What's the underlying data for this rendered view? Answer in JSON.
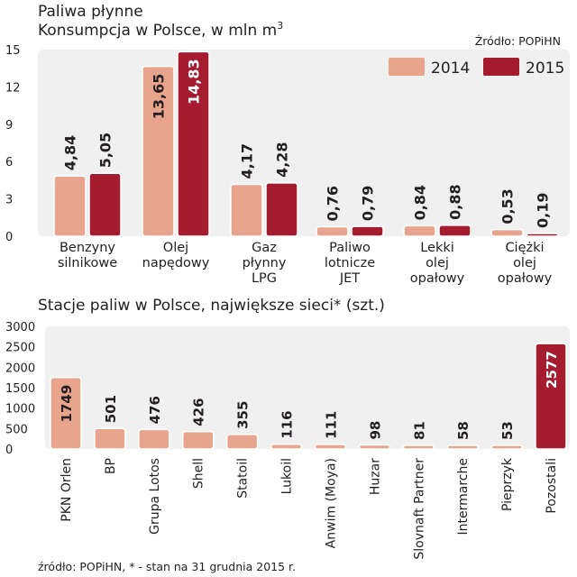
{
  "colors": {
    "series_2014": "#e8a48c",
    "series_2015": "#a51c30",
    "panel_bg": "#f0f0f0",
    "text": "#231f20"
  },
  "chart_data": [
    {
      "type": "bar",
      "title": "Paliwa płynne",
      "subtitle": "Konsumpcja w Polsce, w mln m",
      "subtitle_sup": "3",
      "source": "Źródło: POPiHN",
      "ylim": [
        0,
        15
      ],
      "yticks": [
        "0",
        "3",
        "6",
        "9",
        "12",
        "15"
      ],
      "ytick_values": [
        0,
        3,
        6,
        9,
        12,
        15
      ],
      "legend": [
        "2014",
        "2015"
      ],
      "legend_position": "top-right",
      "categories": [
        [
          "Benzyny",
          "silnikowe"
        ],
        [
          "Olej",
          "napędowy"
        ],
        [
          "Gaz",
          "płynny",
          "LPG"
        ],
        [
          "Paliwo",
          "lotnicze",
          "JET"
        ],
        [
          "Lekki",
          "olej",
          "opałowy"
        ],
        [
          "Ciężki",
          "olej",
          "opałowy"
        ]
      ],
      "series": [
        {
          "name": "2014",
          "values": [
            4.84,
            13.65,
            4.17,
            0.76,
            0.84,
            0.53
          ],
          "labels": [
            "4,84",
            "13,65",
            "4,17",
            "0,76",
            "0,84",
            "0,53"
          ]
        },
        {
          "name": "2015",
          "values": [
            5.05,
            14.83,
            4.28,
            0.79,
            0.88,
            0.19
          ],
          "labels": [
            "5,05",
            "14,83",
            "4,28",
            "0,79",
            "0,88",
            "0,19"
          ]
        }
      ]
    },
    {
      "type": "bar",
      "title": "Stacje paliw w Polsce, największe sieci* (szt.)",
      "ylim": [
        0,
        3000
      ],
      "yticks": [
        "0",
        "500",
        "1000",
        "1500",
        "2000",
        "2500",
        "3000"
      ],
      "ytick_values": [
        0,
        500,
        1000,
        1500,
        2000,
        2500,
        3000
      ],
      "categories": [
        "PKN Orlen",
        "BP",
        "Grupa Lotos",
        "Shell",
        "Statoil",
        "Lukoil",
        "Anwim (Moya)",
        "Huzar",
        "Slovnaft Partner",
        "Intermarche",
        "Pieprzyk",
        "Pozostali"
      ],
      "values": [
        1749,
        501,
        476,
        426,
        355,
        116,
        111,
        98,
        81,
        58,
        53,
        2577
      ],
      "labels": [
        "1749",
        "501",
        "476",
        "426",
        "355",
        "116",
        "111",
        "98",
        "81",
        "58",
        "53",
        "2577"
      ],
      "footnote": "źródło: POPiHN, * - stan na 31 grudnia 2015 r."
    }
  ]
}
